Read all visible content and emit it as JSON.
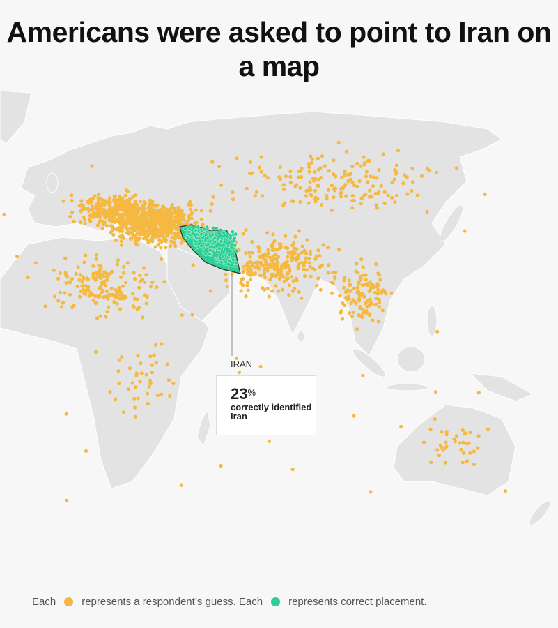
{
  "title": "Americans were asked to point to Iran on a map",
  "map": {
    "highlight_country": "IRAN",
    "callout": {
      "value": "23",
      "unit": "%",
      "text": "correctly identified Iran"
    },
    "colors": {
      "guess": "#f5b942",
      "correct": "#2ecf96",
      "land": "#e3e3e3",
      "border": "#ffffff",
      "ocean": "#f7f7f7"
    }
  },
  "legend": {
    "part1": "Each",
    "part2": "represents a respondent’s guess. Each",
    "part3": "represents correct placement.",
    "guess_icon": "orange-dot",
    "correct_icon": "green-dot"
  }
}
